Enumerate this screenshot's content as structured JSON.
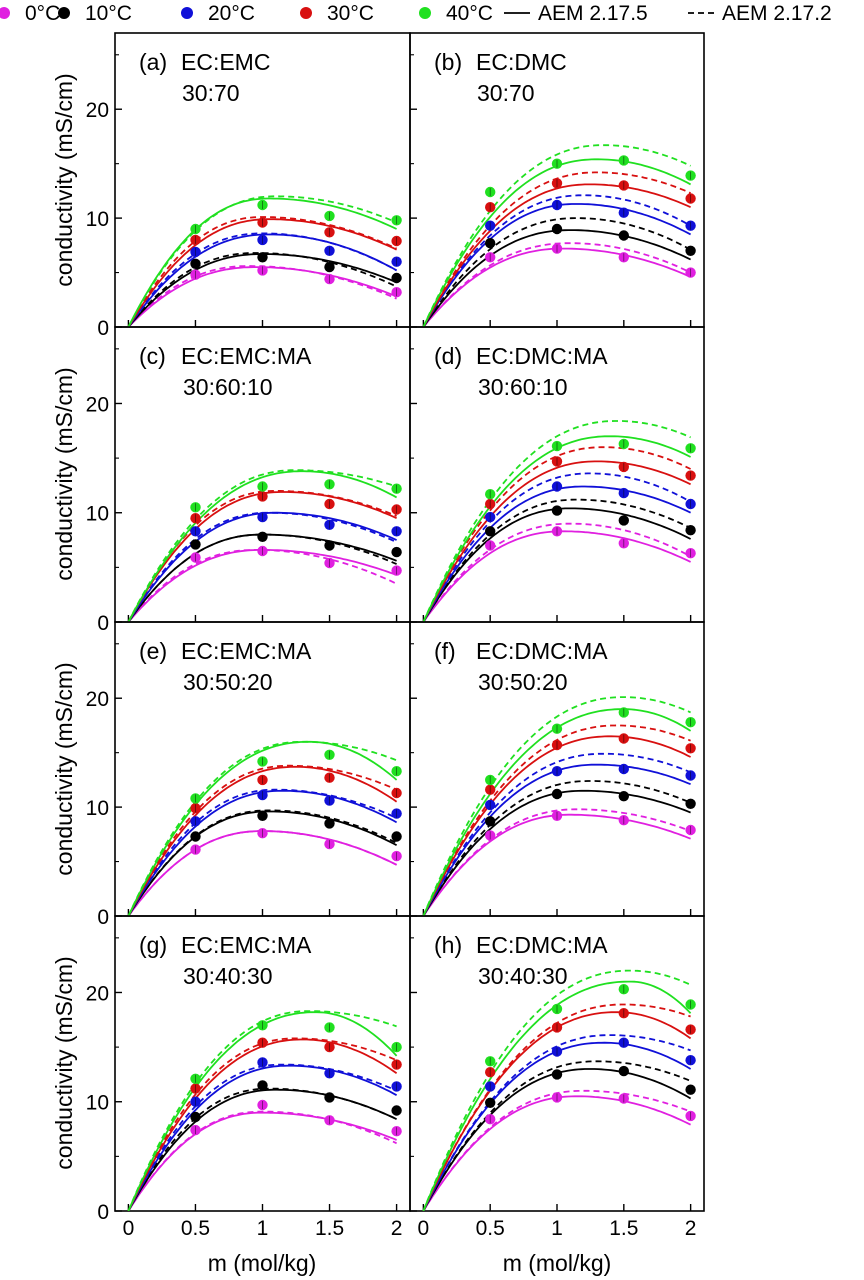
{
  "legend": {
    "temps": [
      {
        "label": "0°C",
        "color": "#e020e0"
      },
      {
        "label": "10°C",
        "color": "#000000"
      },
      {
        "label": "20°C",
        "color": "#1010d8"
      },
      {
        "label": "30°C",
        "color": "#d81010"
      },
      {
        "label": "40°C",
        "color": "#20e020"
      }
    ],
    "solid_label": "AEM 2.17.5",
    "dashed_label": "AEM 2.17.2"
  },
  "ylabel": "conductivity (mS/cm)",
  "xlabel": "m (mol/kg)",
  "x_ticks": [
    "0",
    "0.5",
    "1",
    "1.5",
    "2"
  ],
  "y_ticks": [
    "0",
    "10",
    "20"
  ],
  "chart_data": [
    {
      "type": "line",
      "panel": "(a)",
      "title": "EC:EMC",
      "ratio": "30:70",
      "xlim": [
        -0.1,
        2.1
      ],
      "ylim": [
        0,
        27
      ],
      "x": [
        0.5,
        1,
        1.5,
        2
      ],
      "series": [
        {
          "name": "0°C",
          "points": [
            4.8,
            5.2,
            4.4,
            3.2
          ],
          "peak": 5.5,
          "peak_m": 0.95,
          "dash_peak": 5.6,
          "dash_peak_m": 0.9,
          "dash_end": 2.6
        },
        {
          "name": "10°C",
          "points": [
            5.8,
            6.4,
            5.5,
            4.5
          ],
          "peak": 6.7,
          "peak_m": 1.0,
          "dash_peak": 6.8,
          "dash_peak_m": 0.95,
          "dash_end": 3.7
        },
        {
          "name": "20°C",
          "points": [
            6.9,
            8.0,
            7.0,
            6.0
          ],
          "peak": 8.5,
          "peak_m": 1.05,
          "dash_peak": 8.6,
          "dash_peak_m": 1.0,
          "dash_end": 5.2
        },
        {
          "name": "30°C",
          "points": [
            8.0,
            9.6,
            8.7,
            7.9
          ],
          "peak": 9.9,
          "peak_m": 1.05,
          "dash_peak": 10.1,
          "dash_peak_m": 1.0,
          "dash_end": 7.2
        },
        {
          "name": "40°C",
          "points": [
            9.0,
            11.2,
            10.2,
            9.8
          ],
          "peak": 11.8,
          "peak_m": 1.05,
          "dash_peak": 12.0,
          "dash_peak_m": 1.1,
          "dash_end": 9.6
        }
      ]
    },
    {
      "type": "line",
      "panel": "(b)",
      "title": "EC:DMC",
      "ratio": "30:70",
      "xlim": [
        -0.1,
        2.1
      ],
      "ylim": [
        0,
        27
      ],
      "x": [
        0.5,
        1,
        1.5,
        2
      ],
      "series": [
        {
          "name": "0°C",
          "points": [
            6.4,
            7.2,
            6.4,
            5.0
          ],
          "peak": 7.2,
          "peak_m": 1.05,
          "dash_peak": 7.7,
          "dash_peak_m": 1.1,
          "dash_end": 5.0
        },
        {
          "name": "10°C",
          "points": [
            7.7,
            9.0,
            8.4,
            7.0
          ],
          "peak": 8.9,
          "peak_m": 1.1,
          "dash_peak": 10.0,
          "dash_peak_m": 1.15,
          "dash_end": 7.1
        },
        {
          "name": "20°C",
          "points": [
            9.3,
            11.2,
            10.5,
            9.3
          ],
          "peak": 11.3,
          "peak_m": 1.15,
          "dash_peak": 12.1,
          "dash_peak_m": 1.2,
          "dash_end": 9.3
        },
        {
          "name": "30°C",
          "points": [
            11.0,
            13.2,
            13.0,
            11.8
          ],
          "peak": 13.1,
          "peak_m": 1.25,
          "dash_peak": 14.2,
          "dash_peak_m": 1.3,
          "dash_end": 12.3
        },
        {
          "name": "40°C",
          "points": [
            12.4,
            15.0,
            15.3,
            13.9
          ],
          "peak": 15.4,
          "peak_m": 1.3,
          "dash_peak": 16.7,
          "dash_peak_m": 1.35,
          "dash_end": 14.8
        }
      ]
    },
    {
      "type": "line",
      "panel": "(c)",
      "title": "EC:EMC:MA",
      "ratio": "30:60:10",
      "xlim": [
        -0.1,
        2.1
      ],
      "ylim": [
        0,
        27
      ],
      "x": [
        0.5,
        1,
        1.5,
        2
      ],
      "series": [
        {
          "name": "0°C",
          "points": [
            5.9,
            6.5,
            5.4,
            4.7
          ],
          "peak": 6.6,
          "peak_m": 1.0,
          "dash_peak": 6.6,
          "dash_peak_m": 0.95,
          "dash_end": 3.5
        },
        {
          "name": "10°C",
          "points": [
            7.1,
            7.8,
            7.0,
            6.4
          ],
          "peak": 8.0,
          "peak_m": 1.0,
          "dash_peak": 8.0,
          "dash_peak_m": 1.0,
          "dash_end": 5.3
        },
        {
          "name": "20°C",
          "points": [
            8.3,
            9.6,
            8.9,
            8.3
          ],
          "peak": 10.0,
          "peak_m": 1.1,
          "dash_peak": 10.0,
          "dash_peak_m": 1.05,
          "dash_end": 7.3
        },
        {
          "name": "30°C",
          "points": [
            9.5,
            11.5,
            10.8,
            10.3
          ],
          "peak": 11.9,
          "peak_m": 1.15,
          "dash_peak": 12.0,
          "dash_peak_m": 1.1,
          "dash_end": 9.7
        },
        {
          "name": "40°C",
          "points": [
            10.5,
            12.4,
            12.6,
            12.2
          ],
          "peak": 13.8,
          "peak_m": 1.3,
          "dash_peak": 13.9,
          "dash_peak_m": 1.25,
          "dash_end": 12.4
        }
      ]
    },
    {
      "type": "line",
      "panel": "(d)",
      "title": "EC:DMC:MA",
      "ratio": "30:60:10",
      "xlim": [
        -0.1,
        2.1
      ],
      "ylim": [
        0,
        27
      ],
      "x": [
        0.5,
        1,
        1.5,
        2
      ],
      "series": [
        {
          "name": "0°C",
          "points": [
            7.0,
            8.3,
            7.2,
            6.3
          ],
          "peak": 8.3,
          "peak_m": 1.05,
          "dash_peak": 9.0,
          "dash_peak_m": 1.1,
          "dash_end": 6.0
        },
        {
          "name": "10°C",
          "points": [
            8.3,
            10.2,
            9.3,
            8.4
          ],
          "peak": 10.4,
          "peak_m": 1.1,
          "dash_peak": 11.2,
          "dash_peak_m": 1.15,
          "dash_end": 8.6
        },
        {
          "name": "20°C",
          "points": [
            9.6,
            12.4,
            11.8,
            10.8
          ],
          "peak": 12.4,
          "peak_m": 1.2,
          "dash_peak": 13.6,
          "dash_peak_m": 1.25,
          "dash_end": 11.0
        },
        {
          "name": "30°C",
          "points": [
            10.8,
            14.7,
            14.2,
            13.4
          ],
          "peak": 14.7,
          "peak_m": 1.3,
          "dash_peak": 16.0,
          "dash_peak_m": 1.35,
          "dash_end": 14.0
        },
        {
          "name": "40°C",
          "points": [
            11.7,
            16.1,
            16.3,
            15.9
          ],
          "peak": 17.0,
          "peak_m": 1.4,
          "dash_peak": 18.4,
          "dash_peak_m": 1.45,
          "dash_end": 16.9
        }
      ]
    },
    {
      "type": "line",
      "panel": "(e)",
      "title": "EC:EMC:MA",
      "ratio": "30:50:20",
      "xlim": [
        -0.1,
        2.1
      ],
      "ylim": [
        0,
        27
      ],
      "x": [
        0.5,
        1,
        1.5,
        2
      ],
      "series": [
        {
          "name": "0°C",
          "points": [
            6.1,
            7.6,
            6.6,
            5.5
          ],
          "peak": 7.8,
          "peak_m": 1.0,
          "dash_peak": 7.8,
          "dash_peak_m": 1.0,
          "dash_end": 4.7
        },
        {
          "name": "10°C",
          "points": [
            7.3,
            9.2,
            8.5,
            7.3
          ],
          "peak": 9.6,
          "peak_m": 1.05,
          "dash_peak": 9.7,
          "dash_peak_m": 1.05,
          "dash_end": 6.7
        },
        {
          "name": "20°C",
          "points": [
            8.7,
            11.1,
            10.6,
            9.4
          ],
          "peak": 11.5,
          "peak_m": 1.15,
          "dash_peak": 11.6,
          "dash_peak_m": 1.1,
          "dash_end": 9.0
        },
        {
          "name": "30°C",
          "points": [
            9.9,
            12.5,
            12.7,
            11.3
          ],
          "peak": 13.7,
          "peak_m": 1.25,
          "dash_peak": 13.8,
          "dash_peak_m": 1.2,
          "dash_end": 11.6
        },
        {
          "name": "40°C",
          "points": [
            10.8,
            14.2,
            14.8,
            13.3
          ],
          "peak": 16.0,
          "peak_m": 1.35,
          "dash_peak": 16.0,
          "dash_peak_m": 1.3,
          "dash_end": 14.3
        }
      ]
    },
    {
      "type": "line",
      "panel": "(f)",
      "title": "EC:DMC:MA",
      "ratio": "30:50:20",
      "xlim": [
        -0.1,
        2.1
      ],
      "ylim": [
        0,
        27
      ],
      "x": [
        0.5,
        1,
        1.5,
        2
      ],
      "series": [
        {
          "name": "0°C",
          "points": [
            7.4,
            9.2,
            8.8,
            7.9
          ],
          "peak": 9.3,
          "peak_m": 1.1,
          "dash_peak": 9.8,
          "dash_peak_m": 1.15,
          "dash_end": 7.8
        },
        {
          "name": "10°C",
          "points": [
            8.7,
            11.2,
            11.0,
            10.3
          ],
          "peak": 11.5,
          "peak_m": 1.2,
          "dash_peak": 12.4,
          "dash_peak_m": 1.25,
          "dash_end": 10.4
        },
        {
          "name": "20°C",
          "points": [
            10.2,
            13.3,
            13.5,
            12.9
          ],
          "peak": 13.9,
          "peak_m": 1.3,
          "dash_peak": 14.9,
          "dash_peak_m": 1.35,
          "dash_end": 13.2
        },
        {
          "name": "30°C",
          "points": [
            11.6,
            15.7,
            16.3,
            15.4
          ],
          "peak": 16.5,
          "peak_m": 1.4,
          "dash_peak": 17.5,
          "dash_peak_m": 1.45,
          "dash_end": 16.1
        },
        {
          "name": "40°C",
          "points": [
            12.5,
            17.2,
            18.7,
            17.8
          ],
          "peak": 19.0,
          "peak_m": 1.5,
          "dash_peak": 20.1,
          "dash_peak_m": 1.5,
          "dash_end": 18.7
        }
      ]
    },
    {
      "type": "line",
      "panel": "(g)",
      "title": "EC:EMC:MA",
      "ratio": "30:40:30",
      "xlim": [
        -0.1,
        2.1
      ],
      "ylim": [
        0,
        27
      ],
      "x": [
        0.5,
        1,
        1.5,
        2
      ],
      "series": [
        {
          "name": "0°C",
          "points": [
            7.4,
            9.7,
            8.3,
            7.3
          ],
          "peak": 9.0,
          "peak_m": 1.0,
          "dash_peak": 9.1,
          "dash_peak_m": 1.0,
          "dash_end": 6.2
        },
        {
          "name": "10°C",
          "points": [
            8.6,
            11.5,
            10.4,
            9.2
          ],
          "peak": 11.1,
          "peak_m": 1.1,
          "dash_peak": 11.2,
          "dash_peak_m": 1.05,
          "dash_end": 8.4
        },
        {
          "name": "20°C",
          "points": [
            10.0,
            13.6,
            12.6,
            11.4
          ],
          "peak": 13.3,
          "peak_m": 1.2,
          "dash_peak": 13.4,
          "dash_peak_m": 1.15,
          "dash_end": 11.0
        },
        {
          "name": "30°C",
          "points": [
            11.2,
            15.4,
            15.0,
            13.4
          ],
          "peak": 15.7,
          "peak_m": 1.3,
          "dash_peak": 15.8,
          "dash_peak_m": 1.25,
          "dash_end": 13.8
        },
        {
          "name": "40°C",
          "points": [
            12.1,
            17.0,
            16.8,
            15.0
          ],
          "peak": 18.2,
          "peak_m": 1.4,
          "dash_peak": 18.3,
          "dash_peak_m": 1.35,
          "dash_end": 16.9
        }
      ]
    },
    {
      "type": "line",
      "panel": "(h)",
      "title": "EC:DMC:MA",
      "ratio": "30:40:30",
      "xlim": [
        -0.1,
        2.1
      ],
      "ylim": [
        0,
        27
      ],
      "x": [
        0.5,
        1,
        1.5,
        2
      ],
      "series": [
        {
          "name": "0°C",
          "points": [
            8.4,
            10.4,
            10.3,
            8.7
          ],
          "peak": 10.5,
          "peak_m": 1.15,
          "dash_peak": 11.0,
          "dash_peak_m": 1.2,
          "dash_end": 9.1
        },
        {
          "name": "10°C",
          "points": [
            9.9,
            12.5,
            12.8,
            11.1
          ],
          "peak": 13.0,
          "peak_m": 1.25,
          "dash_peak": 13.7,
          "dash_peak_m": 1.3,
          "dash_end": 11.9
        },
        {
          "name": "20°C",
          "points": [
            11.4,
            14.6,
            15.4,
            13.8
          ],
          "peak": 15.4,
          "peak_m": 1.35,
          "dash_peak": 16.1,
          "dash_peak_m": 1.4,
          "dash_end": 14.7
        },
        {
          "name": "30°C",
          "points": [
            12.7,
            16.8,
            18.1,
            16.6
          ],
          "peak": 18.2,
          "peak_m": 1.45,
          "dash_peak": 18.9,
          "dash_peak_m": 1.5,
          "dash_end": 17.8
        },
        {
          "name": "40°C",
          "points": [
            13.7,
            18.5,
            20.3,
            18.9
          ],
          "peak": 21.0,
          "peak_m": 1.55,
          "dash_peak": 22.0,
          "dash_peak_m": 1.55,
          "dash_end": 20.7
        }
      ]
    }
  ]
}
